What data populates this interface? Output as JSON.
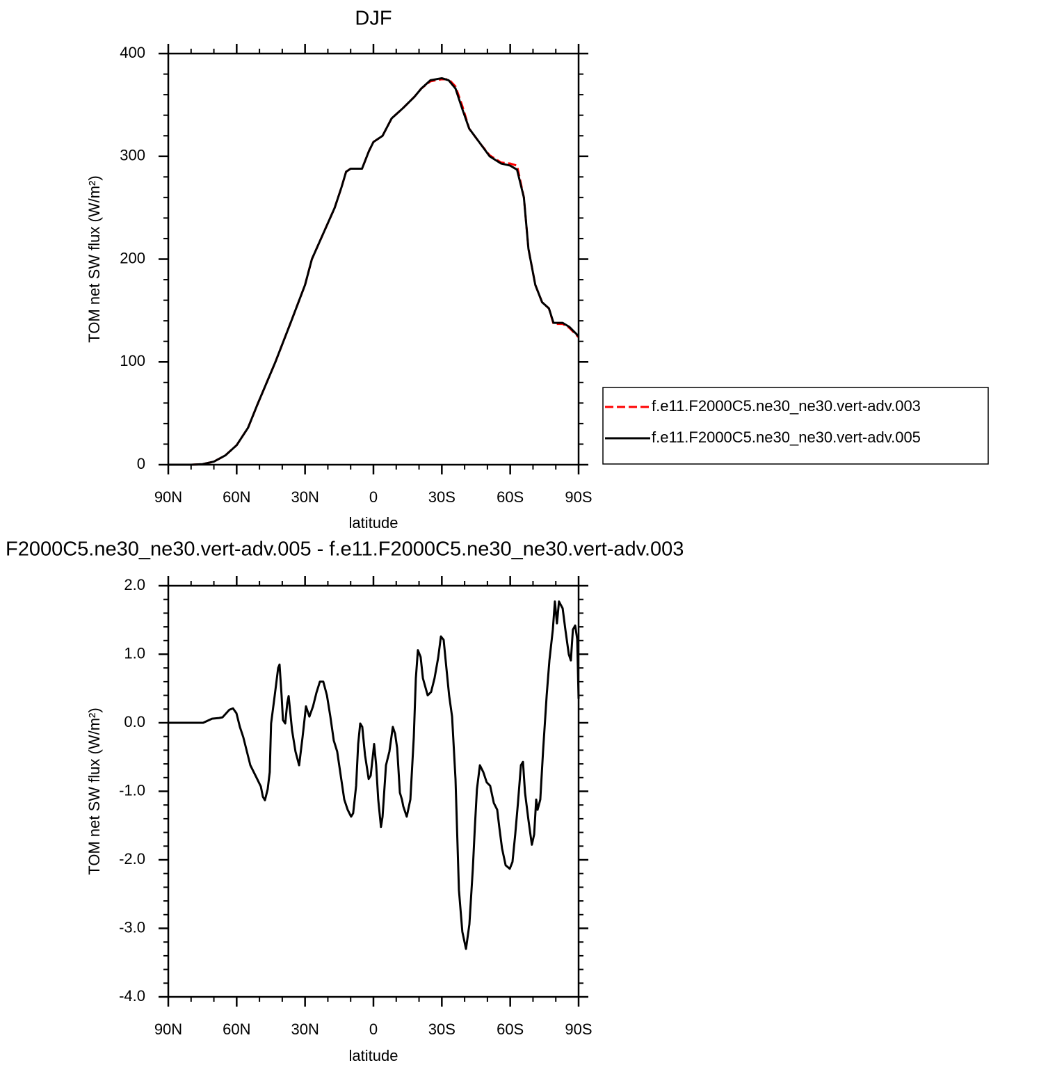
{
  "chart_data": [
    {
      "type": "line",
      "title": "DJF",
      "xlabel": "latitude",
      "ylabel": "TOM net SW flux (W/m²)",
      "x": [
        90,
        80,
        75,
        70,
        65,
        60,
        55,
        51,
        43,
        36,
        30,
        27,
        22,
        17,
        14,
        12,
        10,
        5,
        2,
        0,
        -4,
        -8,
        -13,
        -18,
        -21,
        -25,
        -30,
        -33,
        -36,
        -39,
        -42,
        -47,
        -51,
        -56,
        -60,
        -63,
        -66,
        -68,
        -71,
        -74,
        -77,
        -79,
        -83,
        -86,
        -90
      ],
      "series": [
        {
          "name": "f.e11.F2000C5.ne30_ne30.vert-adv.003",
          "color": "#ff0000",
          "dashed": true,
          "values": [
            0,
            0,
            0.5,
            3,
            9,
            19,
            36,
            58,
            100,
            140,
            175,
            200,
            225,
            250,
            270,
            285,
            288,
            288,
            305,
            314,
            320,
            337,
            347,
            358,
            366,
            373,
            375,
            375,
            368,
            349,
            327,
            312,
            301,
            294,
            293,
            291,
            260,
            210,
            175,
            158,
            152,
            137,
            137,
            133,
            124
          ]
        },
        {
          "name": "f.e11.F2000C5.ne30_ne30.vert-adv.005",
          "color": "#000000",
          "dashed": false,
          "values": [
            0,
            0,
            0.5,
            3,
            9,
            19,
            36,
            58,
            100,
            140,
            175,
            200,
            225,
            250,
            270,
            285,
            288,
            288,
            305,
            314,
            320,
            337,
            347,
            358,
            366,
            374,
            376,
            374,
            366,
            346,
            327,
            312,
            300,
            293,
            291,
            287,
            260,
            210,
            175,
            158,
            152,
            138,
            138,
            134,
            125
          ]
        }
      ],
      "xlim": [
        90,
        -90
      ],
      "xticks": [
        {
          "value": 90,
          "label": "90N"
        },
        {
          "value": 60,
          "label": "60N"
        },
        {
          "value": 30,
          "label": "30N"
        },
        0,
        {
          "value": -30,
          "label": "30S"
        },
        {
          "value": -60,
          "label": "60S"
        },
        {
          "value": -90,
          "label": "90S"
        }
      ],
      "xminorticks": [
        80,
        70,
        50,
        40,
        20,
        10,
        -10,
        -20,
        -40,
        -50,
        -70,
        -80
      ],
      "ylim": [
        0,
        400
      ],
      "yticks": [
        0,
        100,
        200,
        300,
        400
      ],
      "yminorticks": [
        20,
        40,
        60,
        80,
        120,
        140,
        160,
        180,
        220,
        240,
        260,
        280,
        320,
        340,
        360,
        380
      ],
      "legend": "right"
    },
    {
      "type": "line",
      "title": "F2000C5.ne30_ne30.vert-adv.005 - f.e11.F2000C5.ne30_ne30.vert-adv.003",
      "xlabel": "latitude",
      "ylabel": "TOM net SW flux (W/m²)",
      "x": [
        90,
        74.7,
        70.8,
        67.7,
        66.2,
        63.2,
        61.6,
        60.1,
        58.6,
        57.1,
        54.0,
        51.0,
        49.4,
        48.5,
        47.6,
        46.4,
        45.5,
        44.9,
        43.3,
        41.8,
        41.2,
        40.3,
        39.7,
        38.7,
        37.8,
        37.2,
        35.7,
        34.2,
        32.6,
        31.1,
        29.6,
        28.1,
        26.5,
        25.0,
        23.5,
        22.0,
        20.4,
        18.9,
        17.4,
        15.9,
        12.8,
        11.3,
        9.8,
        8.9,
        7.6,
        6.7,
        5.8,
        4.9,
        3.7,
        2.1,
        1.2,
        -0.3,
        -1.2,
        -2.1,
        -3.3,
        -4.0,
        -5.5,
        -7.0,
        -8.5,
        -9.5,
        -10.4,
        -11.6,
        -12.5,
        -13.1,
        -14.6,
        -16.2,
        -17.7,
        -18.6,
        -19.5,
        -20.7,
        -21.7,
        -23.8,
        -25.3,
        -26.8,
        -28.4,
        -29.6,
        -30.8,
        -32.0,
        -33.2,
        -34.5,
        -36.0,
        -37.5,
        -39.0,
        -40.6,
        -42.1,
        -43.6,
        -44.5,
        -45.4,
        -46.7,
        -48.2,
        -49.7,
        -51.2,
        -52.8,
        -54.3,
        -55.2,
        -56.4,
        -58.0,
        -59.8,
        -61.0,
        -62.2,
        -63.4,
        -64.7,
        -65.6,
        -66.5,
        -68.0,
        -69.5,
        -70.5,
        -71.4,
        -72.0,
        -73.2,
        -74.4,
        -76.0,
        -77.2,
        -78.7,
        -79.6,
        -80.5,
        -81.4,
        -83.0,
        -84.2,
        -85.7,
        -86.6,
        -87.5,
        -88.5,
        -89.4,
        -90
      ],
      "series": [
        {
          "color": "#000000",
          "dashed": false,
          "values": [
            0,
            0,
            0.06,
            0.07,
            0.08,
            0.19,
            0.21,
            0.14,
            -0.06,
            -0.21,
            -0.62,
            -0.82,
            -0.93,
            -1.08,
            -1.13,
            -0.97,
            -0.72,
            -0.01,
            0.4,
            0.8,
            0.85,
            0.4,
            0.04,
            -0.01,
            0.29,
            0.39,
            -0.11,
            -0.42,
            -0.62,
            -0.21,
            0.24,
            0.09,
            0.24,
            0.44,
            0.6,
            0.6,
            0.4,
            0.09,
            -0.26,
            -0.42,
            -1.12,
            -1.27,
            -1.37,
            -1.32,
            -0.92,
            -0.31,
            -0.01,
            -0.06,
            -0.47,
            -0.82,
            -0.77,
            -0.31,
            -0.62,
            -1.12,
            -1.52,
            -1.37,
            -0.62,
            -0.42,
            -0.06,
            -0.16,
            -0.37,
            -1.02,
            -1.12,
            -1.22,
            -1.37,
            -1.12,
            -0.21,
            0.65,
            1.06,
            0.96,
            0.65,
            0.4,
            0.45,
            0.65,
            0.95,
            1.26,
            1.21,
            0.8,
            0.4,
            0.09,
            -0.82,
            -2.44,
            -3.05,
            -3.3,
            -2.94,
            -2.13,
            -1.52,
            -0.97,
            -0.62,
            -0.72,
            -0.87,
            -0.92,
            -1.17,
            -1.27,
            -1.52,
            -1.83,
            -2.08,
            -2.13,
            -2.03,
            -1.63,
            -1.17,
            -0.62,
            -0.57,
            -1.02,
            -1.42,
            -1.78,
            -1.63,
            -1.12,
            -1.27,
            -1.12,
            -0.42,
            0.4,
            0.91,
            1.36,
            1.77,
            1.45,
            1.77,
            1.67,
            1.36,
            1.0,
            0.91,
            1.36,
            1.42,
            1.22,
            0.35
          ]
        }
      ],
      "xlim": [
        90,
        -90
      ],
      "xticks": [
        {
          "value": 90,
          "label": "90N"
        },
        {
          "value": 60,
          "label": "60N"
        },
        {
          "value": 30,
          "label": "30N"
        },
        0,
        {
          "value": -30,
          "label": "30S"
        },
        {
          "value": -60,
          "label": "60S"
        },
        {
          "value": -90,
          "label": "90S"
        }
      ],
      "xminorticks": [
        80,
        70,
        50,
        40,
        20,
        10,
        -10,
        -20,
        -40,
        -50,
        -70,
        -80
      ],
      "ylim": [
        -4,
        2
      ],
      "yticks": [
        {
          "value": -4,
          "label": "-4.0"
        },
        {
          "value": -3,
          "label": "-3.0"
        },
        {
          "value": -2,
          "label": "-2.0"
        },
        {
          "value": -1,
          "label": "-1.0"
        },
        {
          "value": 0,
          "label": "0.0"
        },
        {
          "value": 1,
          "label": "1.0"
        },
        {
          "value": 2,
          "label": "2.0"
        }
      ],
      "yminorticks": [
        -3.8,
        -3.6,
        -3.4,
        -3.2,
        -2.8,
        -2.6,
        -2.4,
        -2.2,
        -1.8,
        -1.6,
        -1.4,
        -1.2,
        -0.8,
        -0.6,
        -0.4,
        -0.2,
        0.2,
        0.4,
        0.6,
        0.8,
        1.2,
        1.4,
        1.6,
        1.8
      ]
    }
  ]
}
